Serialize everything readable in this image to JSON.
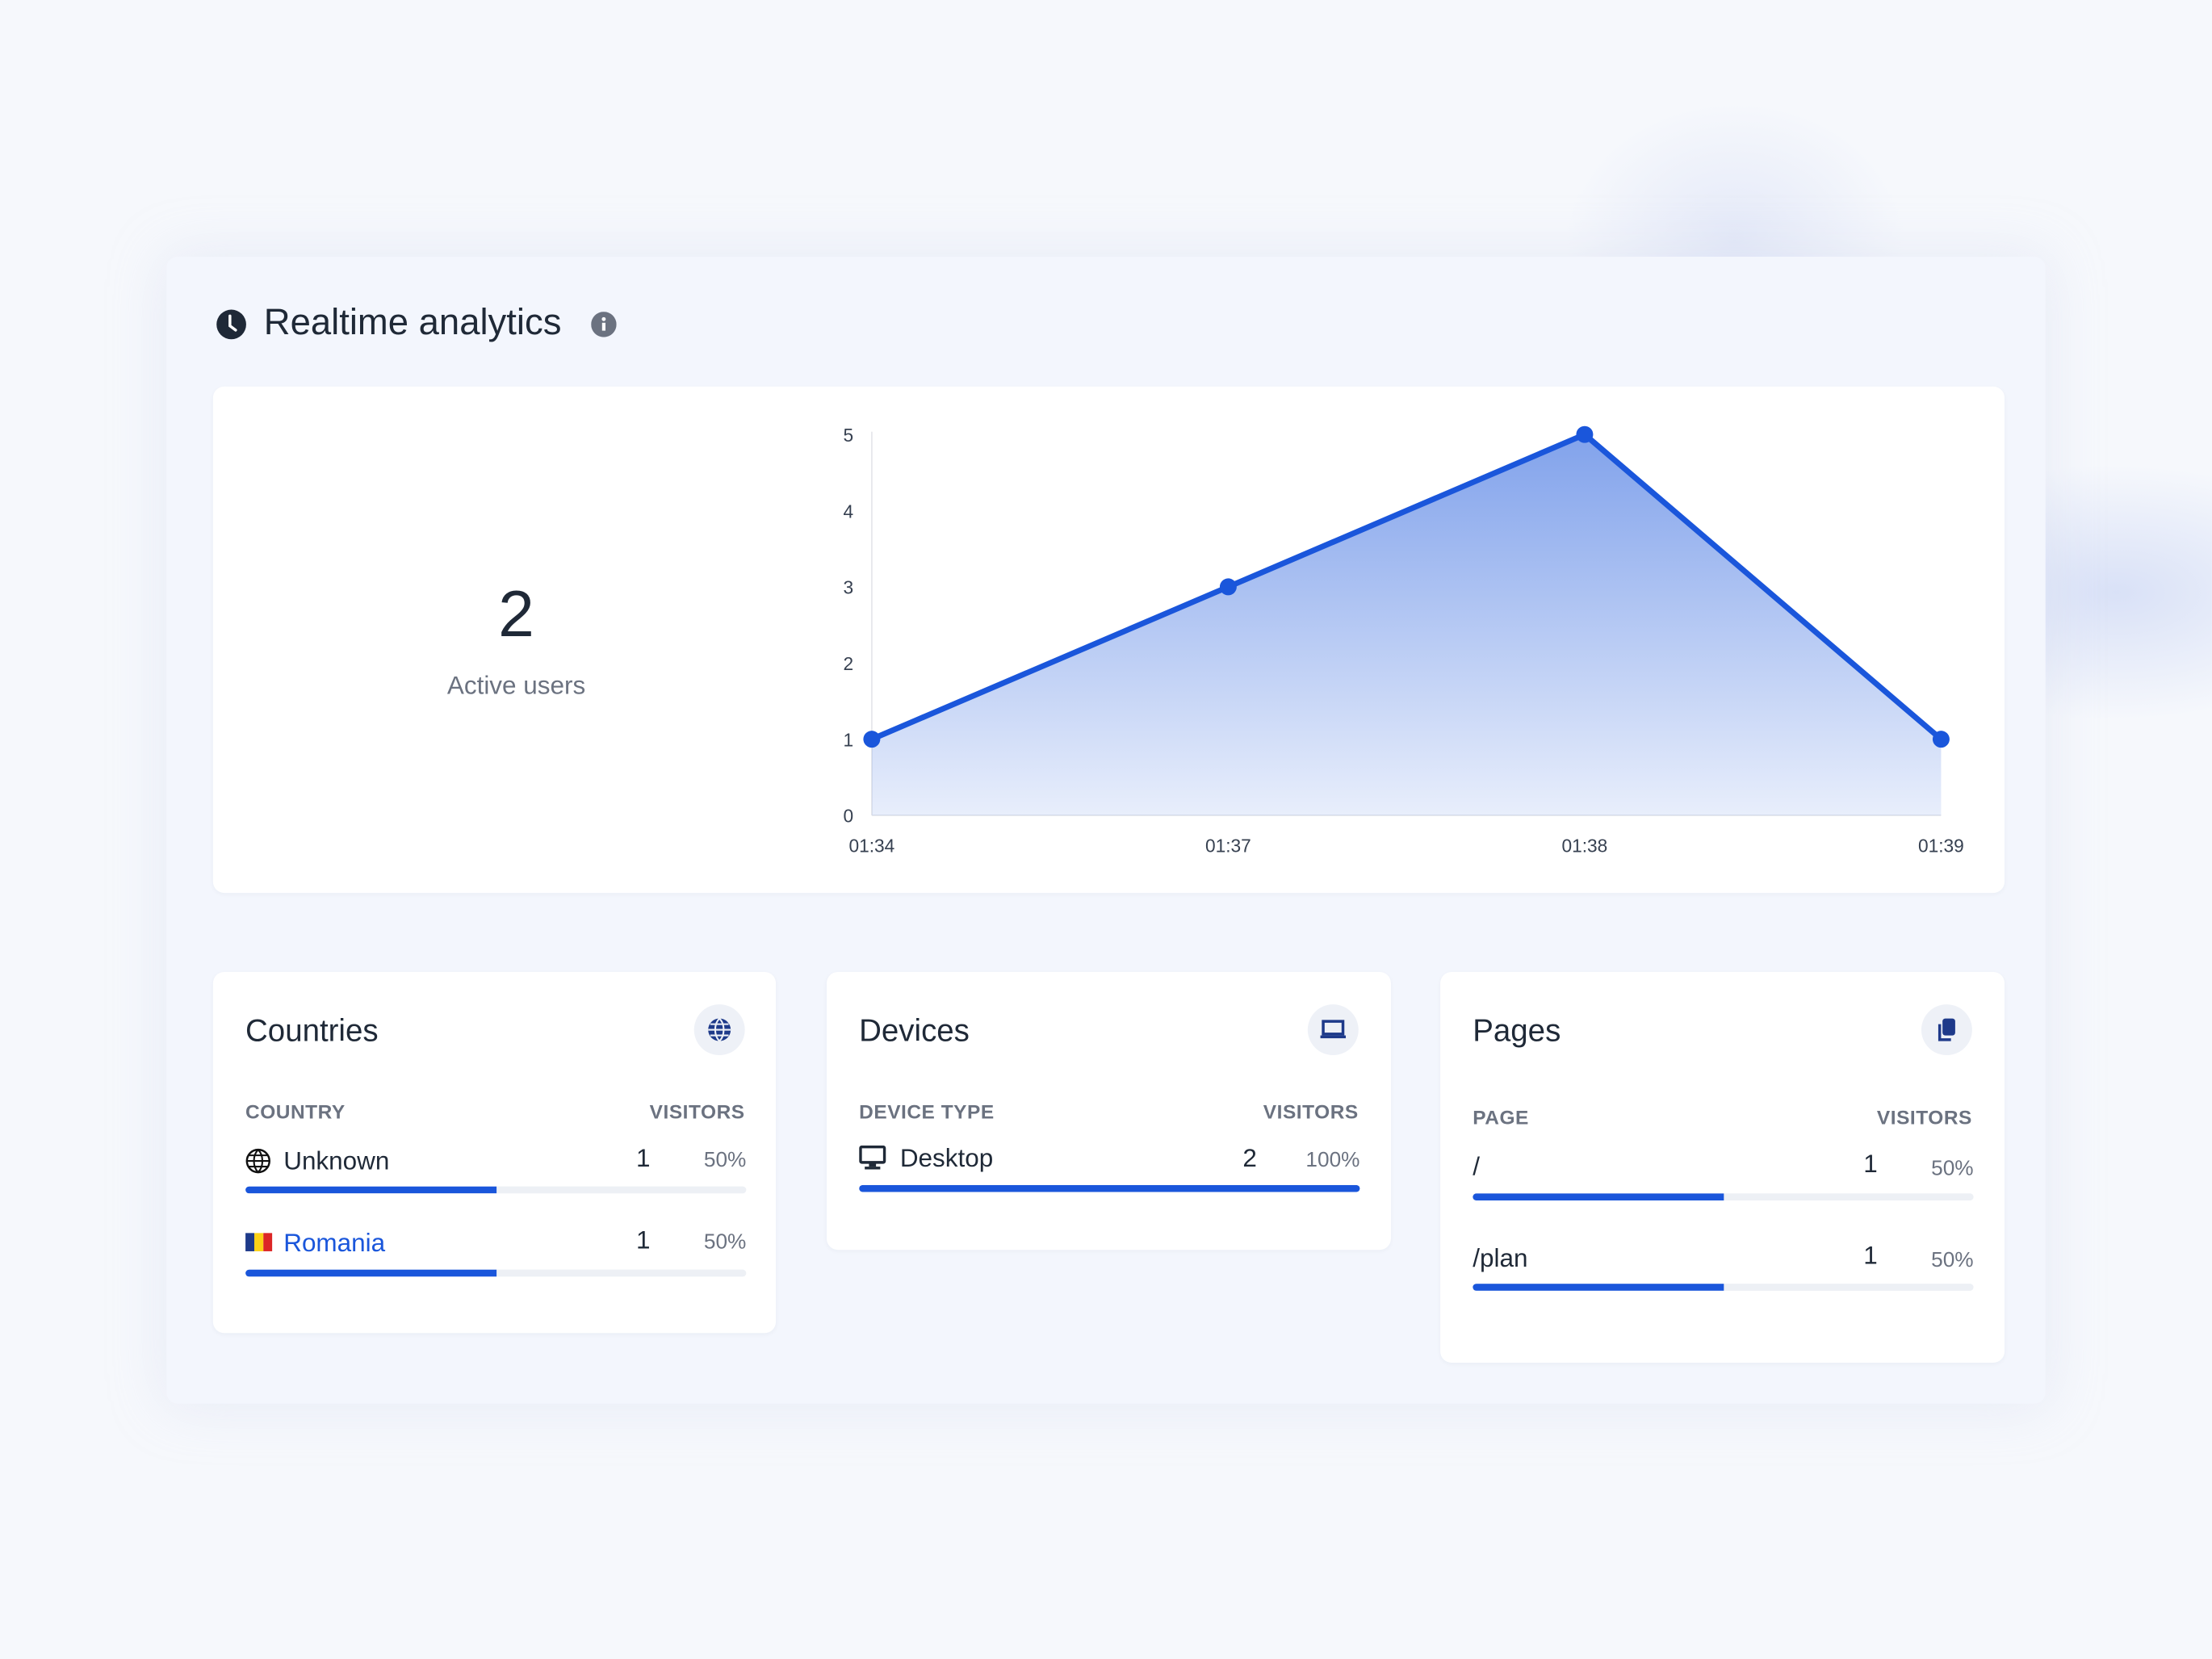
{
  "header": {
    "title": "Realtime analytics",
    "clock_icon": "clock-icon",
    "info_icon": "info-icon"
  },
  "summary": {
    "active_users": "2",
    "active_users_label": "Active users"
  },
  "chart_data": {
    "type": "area",
    "x": [
      "01:34",
      "01:37",
      "01:38",
      "01:39"
    ],
    "series": [
      {
        "values": [
          1,
          3,
          5,
          1
        ]
      }
    ],
    "yticks": [
      "0",
      "1",
      "2",
      "3",
      "4",
      "5"
    ],
    "ylim": [
      0,
      5
    ],
    "color": "#1a56db",
    "grid": false
  },
  "countries": {
    "title": "Countries",
    "icon": "globe-icon",
    "col_label": "COUNTRY",
    "col_value": "VISITORS",
    "rows": [
      {
        "label": "Unknown",
        "icon": "globe-outline-icon",
        "visitors": "1",
        "percent": "50%",
        "share": 50
      },
      {
        "label": "Romania",
        "icon": "romania-flag-icon",
        "visitors": "1",
        "percent": "50%",
        "share": 50
      }
    ]
  },
  "devices": {
    "title": "Devices",
    "icon": "laptop-icon",
    "col_label": "DEVICE TYPE",
    "col_value": "VISITORS",
    "rows": [
      {
        "label": "Desktop",
        "icon": "desktop-icon",
        "visitors": "2",
        "percent": "100%",
        "share": 100
      }
    ]
  },
  "pages": {
    "title": "Pages",
    "icon": "copy-icon",
    "col_label": "PAGE",
    "col_value": "VISITORS",
    "rows": [
      {
        "label": "/",
        "visitors": "1",
        "percent": "50%",
        "share": 50
      },
      {
        "label": "/plan",
        "visitors": "1",
        "percent": "50%",
        "share": 50
      }
    ]
  },
  "colors": {
    "accent": "#1a56db",
    "text": "#1f2937",
    "muted": "#6b7280"
  }
}
